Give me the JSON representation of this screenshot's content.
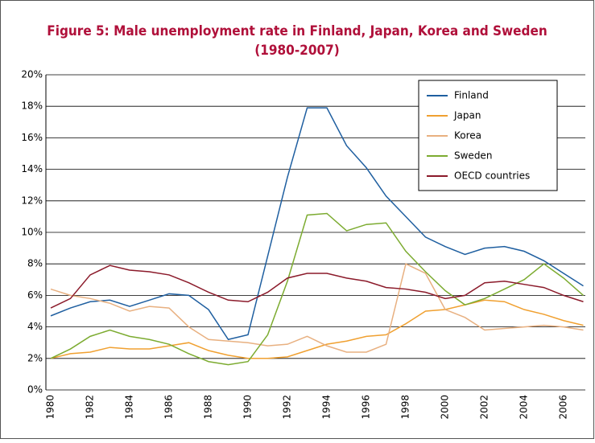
{
  "chart_data": {
    "type": "line",
    "title": [
      "Figure 5: Male unemployment rate in Finland, Japan, Korea and Sweden",
      "(1980-2007)"
    ],
    "categories": [
      "1980",
      null,
      "1982",
      null,
      "1984",
      null,
      "1986",
      null,
      "1988",
      null,
      "1990",
      null,
      "1992",
      null,
      "1994",
      null,
      "1996",
      null,
      "1998",
      null,
      "2000",
      null,
      "2002",
      null,
      "2004",
      null,
      "2006",
      null
    ],
    "series": [
      {
        "name": "Finland",
        "color": "#1f5fa0",
        "values": [
          4.7,
          5.2,
          5.6,
          5.7,
          5.3,
          5.7,
          6.1,
          6.0,
          5.1,
          3.2,
          3.5,
          8.5,
          13.5,
          17.9,
          17.9,
          15.5,
          14.1,
          12.3,
          11.0,
          9.7,
          9.1,
          8.6,
          9.0,
          9.1,
          8.8,
          8.2,
          7.4,
          6.6
        ]
      },
      {
        "name": "Japan",
        "color": "#f0a030",
        "values": [
          2.0,
          2.3,
          2.4,
          2.7,
          2.6,
          2.6,
          2.8,
          3.0,
          2.5,
          2.2,
          2.0,
          2.0,
          2.1,
          2.5,
          2.9,
          3.1,
          3.4,
          3.5,
          4.2,
          5.0,
          5.1,
          5.4,
          5.7,
          5.6,
          5.1,
          4.8,
          4.4,
          4.1
        ]
      },
      {
        "name": "Korea",
        "color": "#e8b080",
        "values": [
          6.4,
          6.0,
          5.8,
          5.5,
          5.0,
          5.3,
          5.2,
          4.0,
          3.2,
          3.1,
          3.0,
          2.8,
          2.9,
          3.4,
          2.8,
          2.4,
          2.4,
          2.9,
          8.0,
          7.4,
          5.1,
          4.6,
          3.8,
          3.9,
          4.0,
          4.1,
          4.0,
          3.8
        ]
      },
      {
        "name": "Sweden",
        "color": "#7cab30",
        "values": [
          2.0,
          2.6,
          3.4,
          3.8,
          3.4,
          3.2,
          2.9,
          2.3,
          1.8,
          1.6,
          1.8,
          3.5,
          6.9,
          11.1,
          11.2,
          10.1,
          10.5,
          10.6,
          8.8,
          7.5,
          6.3,
          5.4,
          5.8,
          6.4,
          7.0,
          8.0,
          7.1,
          6.0
        ]
      },
      {
        "name": "OECD countries",
        "color": "#8b1a2a",
        "values": [
          5.2,
          5.8,
          7.3,
          7.9,
          7.6,
          7.5,
          7.3,
          6.8,
          6.2,
          5.7,
          5.6,
          6.2,
          7.1,
          7.4,
          7.4,
          7.1,
          6.9,
          6.5,
          6.4,
          6.2,
          5.8,
          6.0,
          6.8,
          6.9,
          6.7,
          6.5,
          6.0,
          5.6
        ]
      }
    ],
    "ylim": [
      0,
      20
    ],
    "yticks": [
      {
        "value": 0,
        "label": "0%"
      },
      {
        "value": 2,
        "label": "2%"
      },
      {
        "value": 4,
        "label": "4%"
      },
      {
        "value": 6,
        "label": "6%"
      },
      {
        "value": 8,
        "label": "8%"
      },
      {
        "value": 10,
        "label": "10%"
      },
      {
        "value": 12,
        "label": "12%"
      },
      {
        "value": 14,
        "label": "14%"
      },
      {
        "value": 16,
        "label": "16%"
      },
      {
        "value": 18,
        "label": "18%"
      },
      {
        "value": 20,
        "label": "20%"
      }
    ],
    "grid": true,
    "legend": "upper right"
  }
}
